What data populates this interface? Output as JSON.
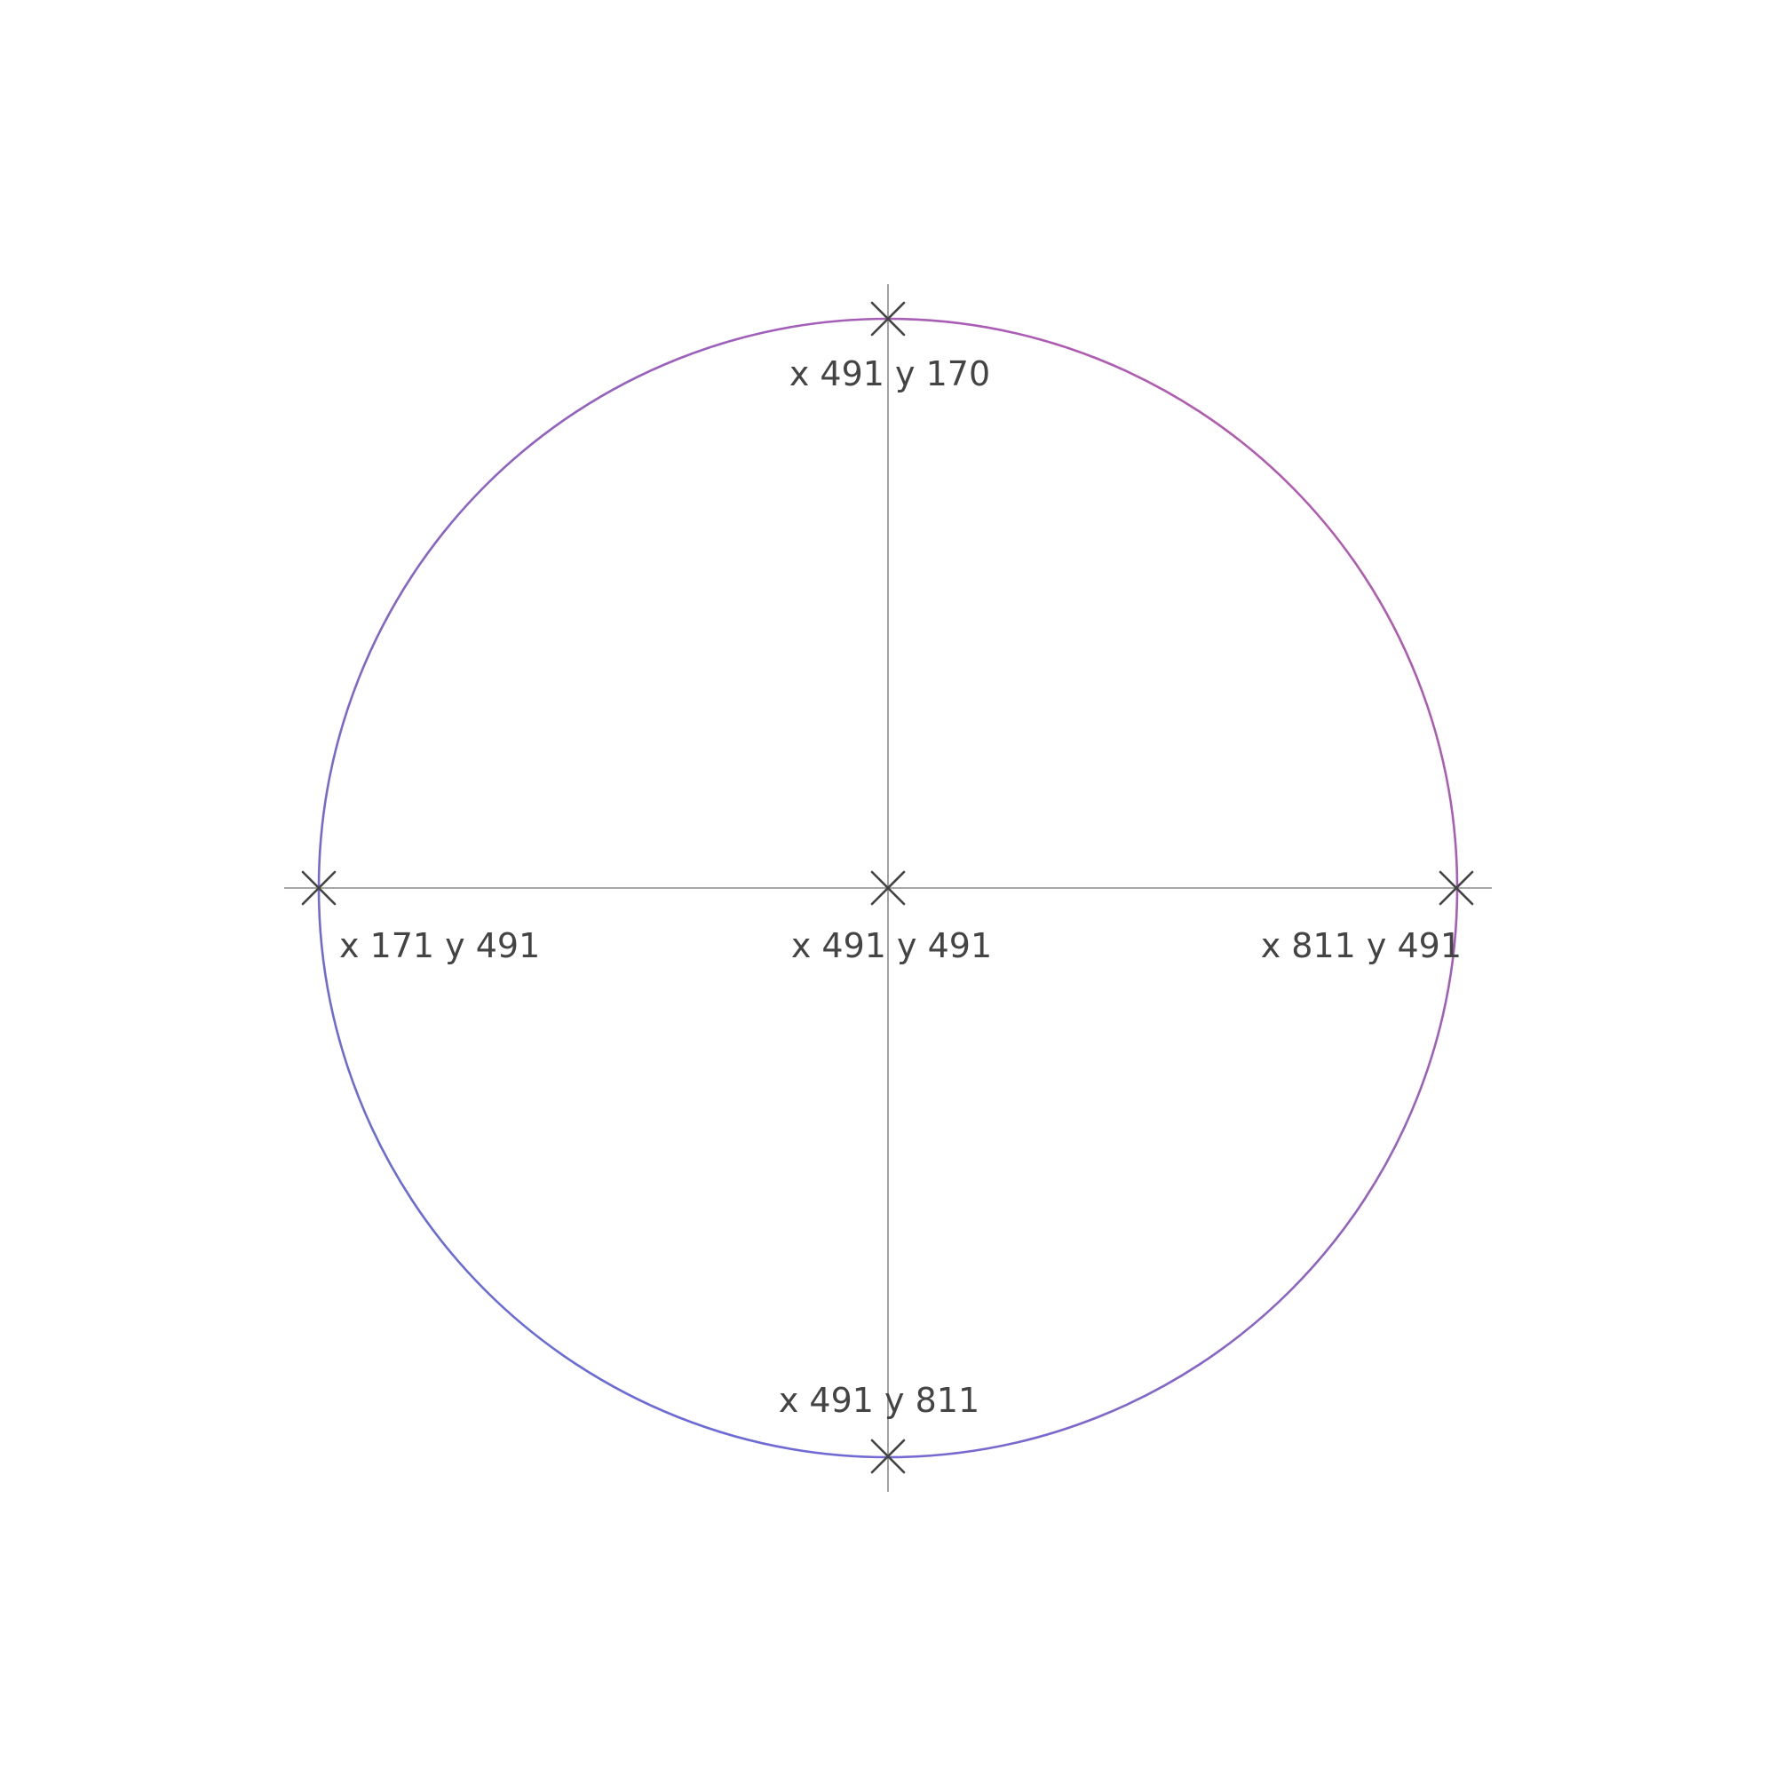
{
  "colors": {
    "circle_gradient_start": "#c058a8",
    "circle_gradient_end": "#5a6fe0",
    "axis": "#8a8a8a",
    "marker": "#444444",
    "label": "#444444"
  },
  "points": {
    "top": {
      "label": "x 491 y 170"
    },
    "left": {
      "label": "x 171 y 491"
    },
    "center": {
      "label": "x 491 y 491"
    },
    "right": {
      "label": "x 811 y 491"
    },
    "bottom": {
      "label": "x 491 y 811"
    }
  }
}
